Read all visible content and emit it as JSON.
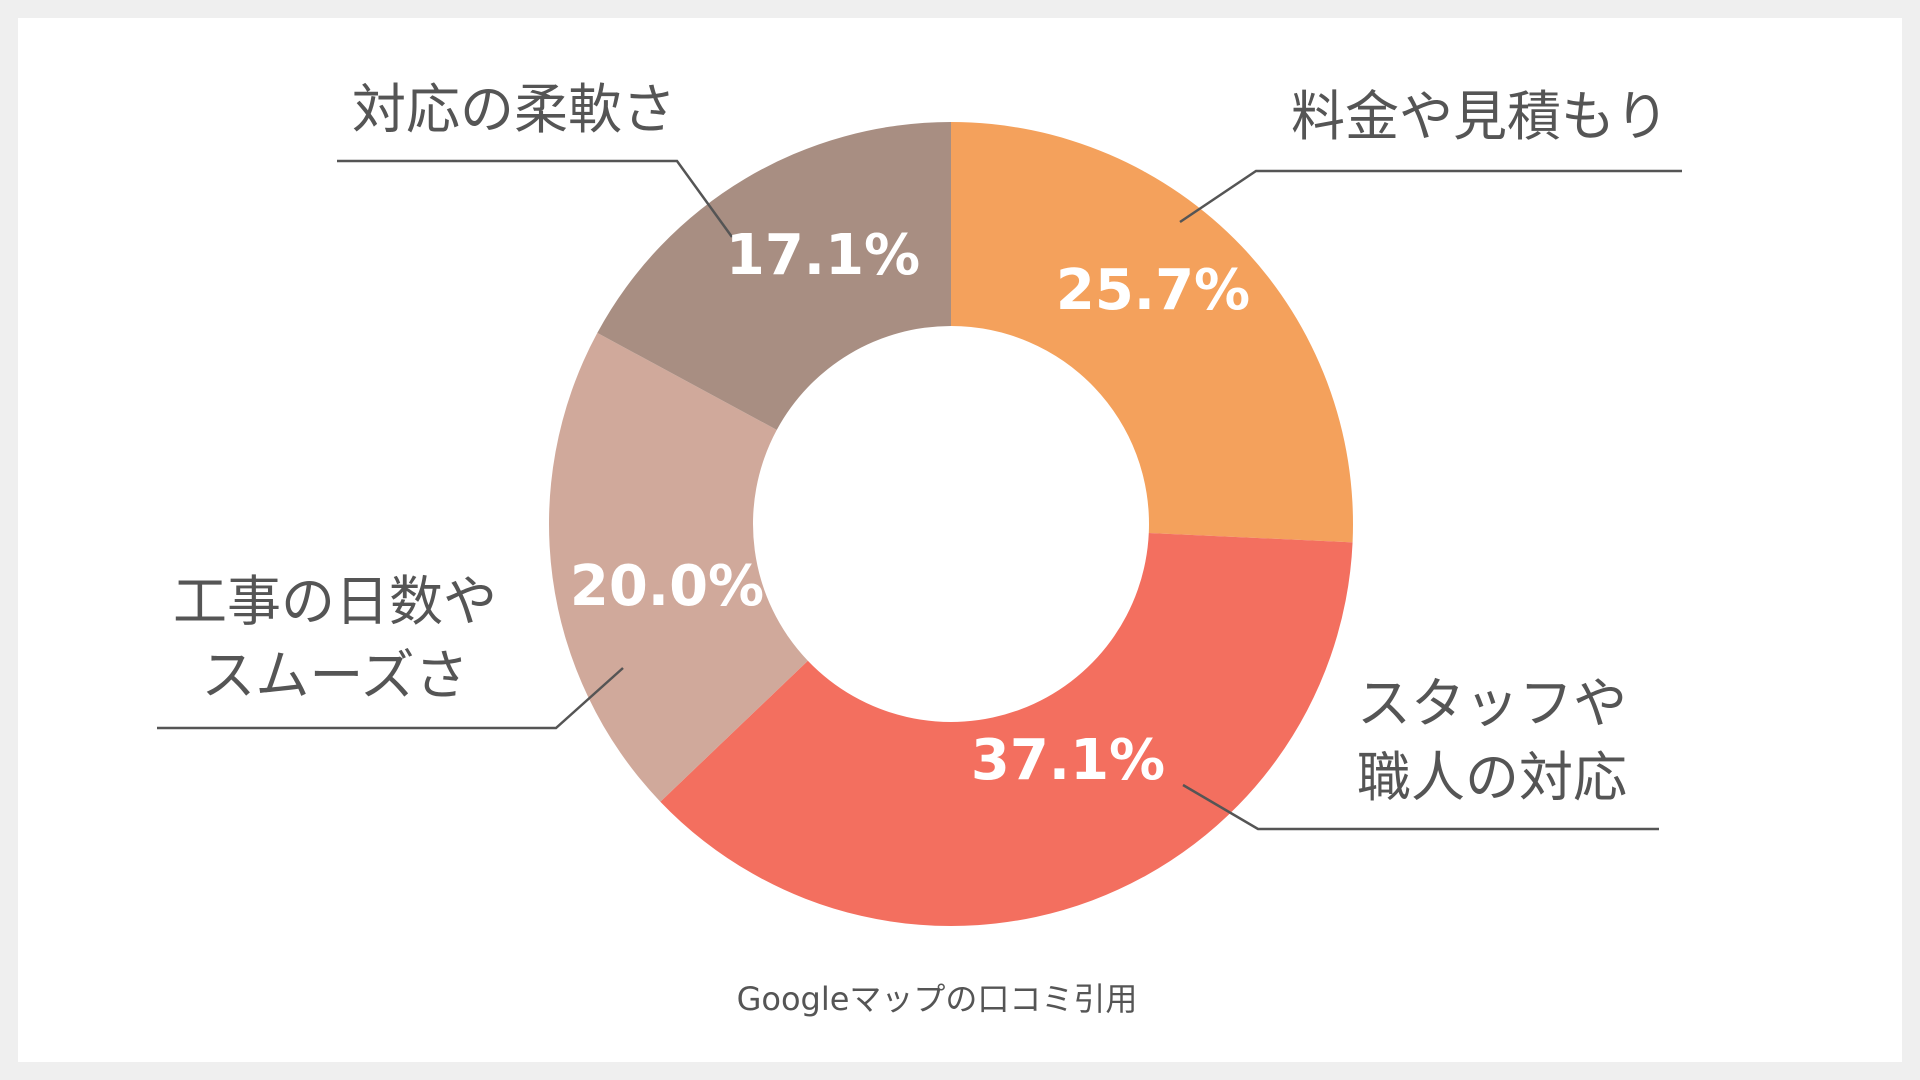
{
  "chart_data": {
    "type": "pie",
    "donut": true,
    "categories": [
      "料金や見積もり",
      "スタッフや職人の対応",
      "工事の日数やスムーズさ",
      "対応の柔軟さ"
    ],
    "values": [
      25.7,
      37.1,
      20.0,
      17.1
    ],
    "value_labels": [
      "25.7%",
      "37.1%",
      "20.0%",
      "17.1%"
    ],
    "category_label_lines": [
      [
        "料金や見積もり"
      ],
      [
        "スタッフや",
        "職人の対応"
      ],
      [
        "工事の日数や",
        "スムーズさ"
      ],
      [
        "対応の柔軟さ"
      ]
    ],
    "colors": [
      "#F4A15C",
      "#F36F5F",
      "#D0A99B",
      "#A88E82"
    ],
    "start": "top",
    "direction": "clockwise",
    "legend": "none",
    "source_note": "Googleマップの口コミ引用"
  }
}
